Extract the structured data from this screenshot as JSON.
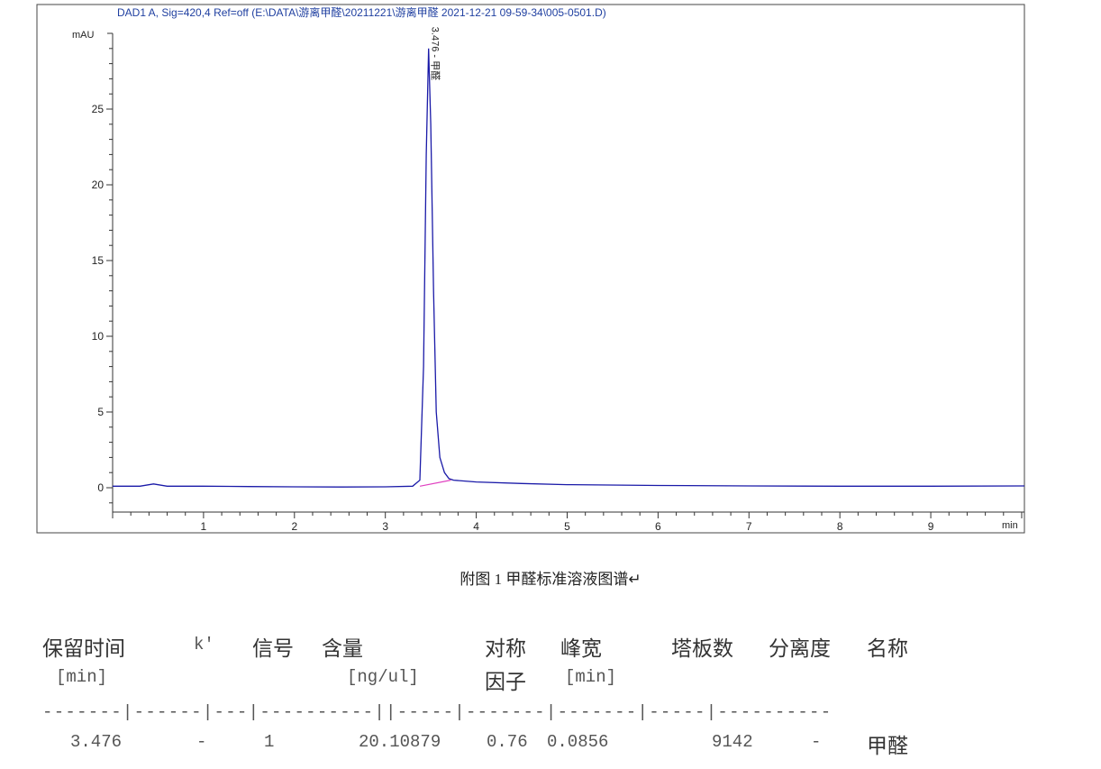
{
  "chart_data": {
    "type": "line",
    "title": "DAD1 A, Sig=420,4 Ref=off (E:\\DATA\\游离甲醛\\20211221\\游离甲醛 2021-12-21 09-59-34\\005-0501.D)",
    "ylabel": "mAU",
    "xlabel": "min",
    "xlim": [
      0,
      10.03
    ],
    "ylim": [
      -1.6,
      31.9
    ],
    "xticks": [
      1,
      2,
      3,
      4,
      5,
      6,
      7,
      8,
      9
    ],
    "yticks": [
      0,
      5,
      10,
      15,
      20,
      25
    ],
    "grid": false,
    "series_color": "#1a1aa8",
    "baseline_color": "#e040c0",
    "title_color": "#1f3fa0",
    "x": [
      0,
      0.3,
      0.45,
      0.6,
      1,
      1.5,
      2,
      2.5,
      3,
      3.3,
      3.38,
      3.42,
      3.45,
      3.476,
      3.5,
      3.53,
      3.56,
      3.6,
      3.65,
      3.7,
      3.75,
      4,
      4.5,
      5,
      6,
      7,
      8,
      9,
      10.03
    ],
    "y": [
      0.1,
      0.1,
      0.25,
      0.1,
      0.1,
      0.08,
      0.06,
      0.05,
      0.06,
      0.1,
      0.5,
      8,
      22,
      29,
      24,
      13,
      5,
      2,
      1,
      0.6,
      0.5,
      0.38,
      0.28,
      0.2,
      0.15,
      0.12,
      0.1,
      0.1,
      0.12
    ],
    "baseline_segment": {
      "x": [
        3.38,
        3.72
      ],
      "y": [
        0.1,
        0.5
      ]
    },
    "peak_label": {
      "x": 3.476,
      "y": 29,
      "text": "3.476 - 甲醛"
    }
  },
  "caption": "附图  1  甲醛标准溶液图谱↵",
  "table": {
    "headers": [
      "保留时间",
      "k'",
      "信号",
      "含量",
      "对称",
      "峰宽",
      "塔板数",
      "分离度",
      "名称"
    ],
    "units": [
      "[min]",
      "[ng/ul]",
      "因子",
      "[min]"
    ],
    "separator": "-------|------|---|----------||-----|-------|-------|-----|----------",
    "rows": [
      [
        "3.476",
        "-",
        "1",
        "20.10879",
        "0.76",
        "0.0856",
        "9142",
        "-",
        "甲醛"
      ]
    ]
  }
}
